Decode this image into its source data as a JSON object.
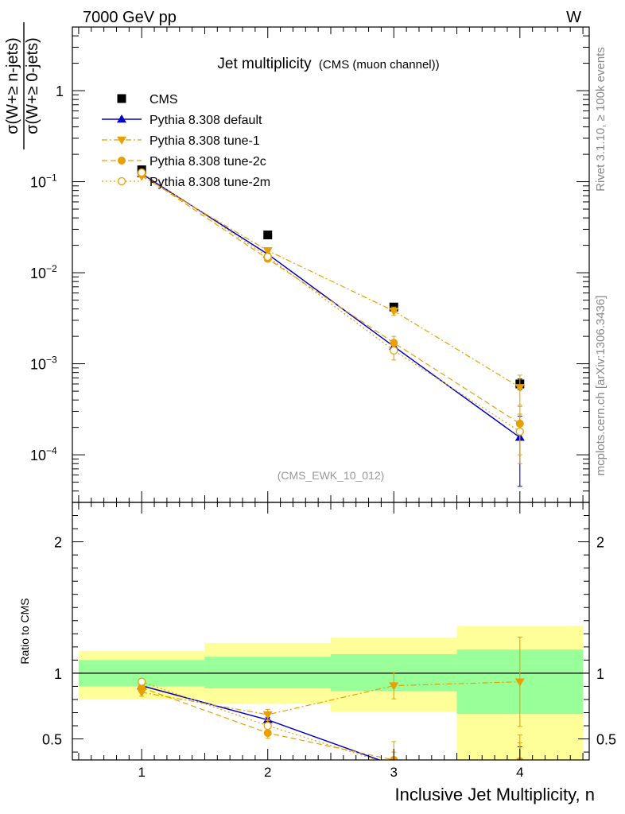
{
  "header": {
    "left": "7000 GeV pp",
    "right": "W",
    "title": "Jet multiplicity",
    "subtitle": "(CMS (muon channel))",
    "analysis_id": "(CMS_EWK_10_012)",
    "side_rivet": "Rivet 3.1.10, ≥ 100k events",
    "side_mcplots": "mcplots.cern.ch [arXiv:1306.3436]"
  },
  "chart_data": [
    {
      "type": "scatter",
      "title": "Jet multiplicity",
      "ylabel_num": "σ(W+≥ n-jets)",
      "ylabel_den": "σ(W+≥ 0-jets)",
      "yscale": "log",
      "xlim": [
        0.45,
        4.55
      ],
      "ylim": [
        3e-05,
        5
      ],
      "ytick_labels": [
        {
          "value": 1,
          "mant": "1",
          "exp": ""
        },
        {
          "value": 0.1,
          "mant": "10",
          "exp": "−1"
        },
        {
          "value": 0.01,
          "mant": "10",
          "exp": "−2"
        },
        {
          "value": 0.001,
          "mant": "10",
          "exp": "−3"
        },
        {
          "value": 0.0001,
          "mant": "10",
          "exp": "−4"
        }
      ],
      "legend_position": "top-left",
      "series": [
        {
          "name": "CMS",
          "color": "#000000",
          "marker": "square",
          "line": "none",
          "x": [
            1,
            2,
            3,
            4
          ],
          "y": [
            0.135,
            0.026,
            0.0042,
            0.0006
          ],
          "yerr": [
            0.004,
            0.002,
            0.0004,
            8e-05
          ]
        },
        {
          "name": "Pythia 8.308 default",
          "color": "#0000cc",
          "marker": "triangle-up",
          "line": "solid",
          "x": [
            1,
            2,
            3,
            4
          ],
          "y": [
            0.122,
            0.016,
            0.00155,
            0.000155
          ],
          "yerr": [
            0.001,
            0.0004,
            0.0001,
            0.00011
          ]
        },
        {
          "name": "Pythia 8.308 tune-1",
          "color": "#e8a000",
          "marker": "triangle-down",
          "line": "dashdot",
          "x": [
            1,
            2,
            3,
            4
          ],
          "y": [
            0.115,
            0.0175,
            0.0038,
            0.00055
          ],
          "yerr": [
            0.001,
            0.0005,
            0.0004,
            0.0002
          ]
        },
        {
          "name": "Pythia 8.308 tune-2c",
          "color": "#e8a000",
          "marker": "circle",
          "line": "dashed",
          "x": [
            1,
            2,
            3,
            4
          ],
          "y": [
            0.12,
            0.0142,
            0.0017,
            0.00022
          ],
          "yerr": [
            0.001,
            0.0004,
            0.0003,
            0.00012
          ]
        },
        {
          "name": "Pythia 8.308 tune-2m",
          "color": "#e8a000",
          "marker": "circle-open",
          "line": "dotted",
          "x": [
            1,
            2,
            3,
            4
          ],
          "y": [
            0.126,
            0.015,
            0.0014,
            0.00018
          ],
          "yerr": [
            0.001,
            0.0004,
            0.0003,
            0.0001
          ]
        }
      ]
    },
    {
      "type": "scatter",
      "ylabel": "Ratio to CMS",
      "xlabel": "Inclusive Jet Multiplicity, n",
      "xlim": [
        0.45,
        4.55
      ],
      "ylim": [
        0.34,
        2.3
      ],
      "xtick_labels": [
        "1",
        "2",
        "3",
        "4"
      ],
      "ytick_labels": [
        "0.5",
        "1",
        "2"
      ],
      "ytick_values": [
        0.5,
        1,
        2
      ],
      "bands": [
        {
          "x0": 0.5,
          "x1": 1.5,
          "stat": [
            0.9,
            1.1
          ],
          "total": [
            0.8,
            1.17
          ]
        },
        {
          "x0": 1.5,
          "x1": 2.5,
          "stat": [
            0.885,
            1.125
          ],
          "total": [
            0.77,
            1.23
          ]
        },
        {
          "x0": 2.5,
          "x1": 3.5,
          "stat": [
            0.865,
            1.145
          ],
          "total": [
            0.705,
            1.27
          ]
        },
        {
          "x0": 3.5,
          "x1": 4.5,
          "stat": [
            0.69,
            1.18
          ],
          "total": [
            0.3,
            1.36
          ]
        }
      ],
      "series": [
        {
          "name": "Pythia 8.308 default",
          "color": "#0000cc",
          "marker": "triangle-up",
          "line": "solid",
          "x": [
            1,
            2,
            3,
            4
          ],
          "y": [
            0.905,
            0.645,
            0.3,
            0.26
          ],
          "yerr": [
            0.01,
            0.02,
            0.03,
            0.18
          ]
        },
        {
          "name": "Pythia 8.308 tune-1",
          "color": "#e8a000",
          "marker": "triangle-down",
          "line": "dashdot",
          "x": [
            1,
            2,
            3,
            4
          ],
          "y": [
            0.855,
            0.685,
            0.905,
            0.935
          ],
          "yerr": [
            0.03,
            0.04,
            0.1,
            0.34
          ]
        },
        {
          "name": "Pythia 8.308 tune-2c",
          "color": "#e8a000",
          "marker": "circle",
          "line": "dashed",
          "x": [
            1,
            2,
            3,
            4
          ],
          "y": [
            0.89,
            0.545,
            0.34,
            0.33
          ],
          "yerr": [
            0.02,
            0.04,
            0.14,
            0.2
          ]
        },
        {
          "name": "Pythia 8.308 tune-2m",
          "color": "#e8a000",
          "marker": "circle-open",
          "line": "dotted",
          "x": [
            1,
            2,
            3,
            4
          ],
          "y": [
            0.935,
            0.6,
            0.3,
            0.27
          ],
          "yerr": [
            0.02,
            0.04,
            0.1,
            0.2
          ]
        }
      ]
    }
  ]
}
